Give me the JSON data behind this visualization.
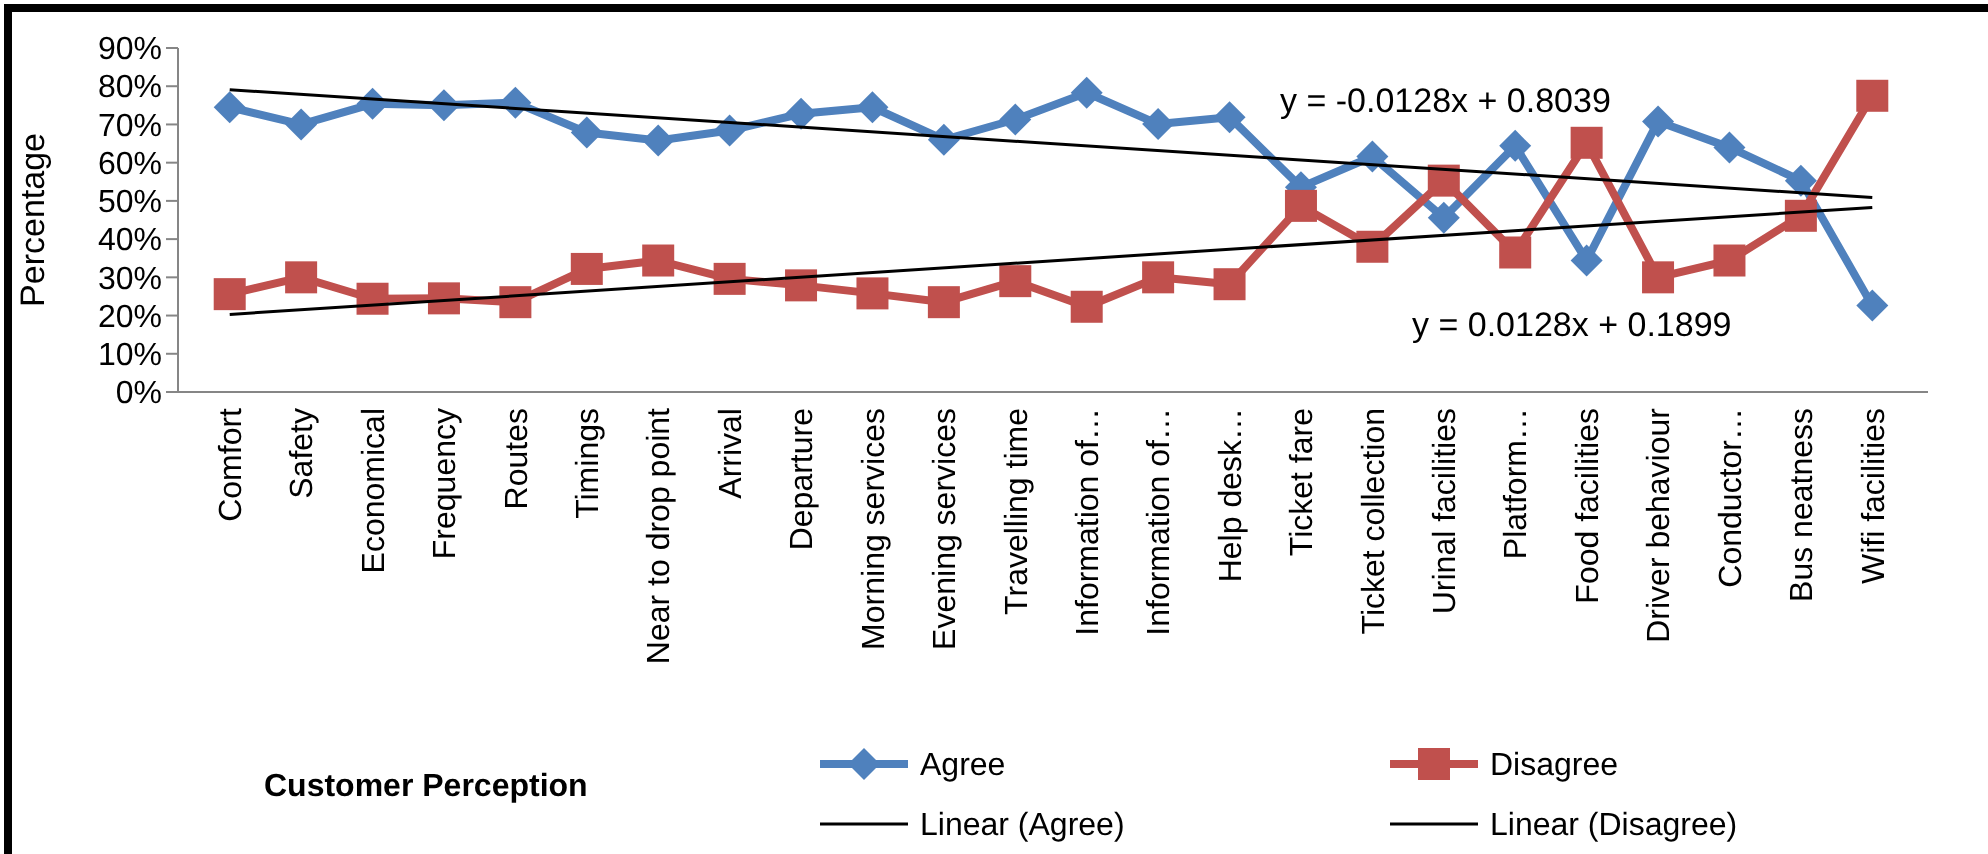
{
  "chart_data": {
    "type": "line",
    "xlabel": "Customer Perception",
    "ylabel": "Percentage",
    "categories": [
      "Comfort",
      "Safety",
      "Economical",
      "Frequency",
      "Routes",
      "Timings",
      "Near to drop point",
      "Arrival",
      "Departure",
      "Morning services",
      "Evening services",
      "Travelling time",
      "Information of…",
      "Information of…",
      "Help desk…",
      "Ticket fare",
      "Ticket collection",
      "Urinal facilities",
      "Platform…",
      "Food facilities",
      "Driver behaviour",
      "Conductor…",
      "Bus neatness",
      "Wifi facilities"
    ],
    "series": [
      {
        "name": "Agree",
        "color": "#4f81bd",
        "marker": "diamond",
        "values": [
          74.5,
          70,
          75.4,
          75,
          75.7,
          67.9,
          65.8,
          68.4,
          72.8,
          74.5,
          66,
          71.3,
          78.3,
          70.1,
          71.9,
          53.6,
          61.6,
          45.6,
          64.4,
          34.4,
          70.8,
          64,
          55.3,
          22.6
        ]
      },
      {
        "name": "Disagree",
        "color": "#c0504d",
        "marker": "square",
        "values": [
          25.6,
          30,
          24.4,
          24.5,
          23.5,
          32.2,
          34.4,
          29.6,
          27.9,
          25.8,
          23.5,
          29,
          22.3,
          30,
          28.2,
          48.7,
          38,
          55.3,
          36.5,
          65.2,
          30,
          34.4,
          46.1,
          77.5
        ]
      },
      {
        "name": "Linear (Agree)",
        "color": "#000000",
        "marker": "none",
        "x": [
          "Comfort",
          "Wifi facilities"
        ],
        "values": [
          79.1,
          50.9
        ]
      },
      {
        "name": "Linear (Disagree)",
        "color": "#000000",
        "marker": "none",
        "x": [
          "Comfort",
          "Wifi facilities"
        ],
        "values": [
          20.3,
          48.3
        ]
      }
    ],
    "ylim": [
      0,
      90
    ],
    "yticks": [
      {
        "value": 0,
        "label": "0%"
      },
      {
        "value": 10,
        "label": "10%"
      },
      {
        "value": 20,
        "label": "20%"
      },
      {
        "value": 30,
        "label": "30%"
      },
      {
        "value": 40,
        "label": "40%"
      },
      {
        "value": 50,
        "label": "50%"
      },
      {
        "value": 60,
        "label": "60%"
      },
      {
        "value": 70,
        "label": "70%"
      },
      {
        "value": 80,
        "label": "80%"
      },
      {
        "value": 90,
        "label": "90%"
      }
    ],
    "annotations": [
      "y = -0.0128x + 0.8039",
      "y = 0.0128x + 0.1899"
    ],
    "legend": "bottom",
    "grid": false
  }
}
